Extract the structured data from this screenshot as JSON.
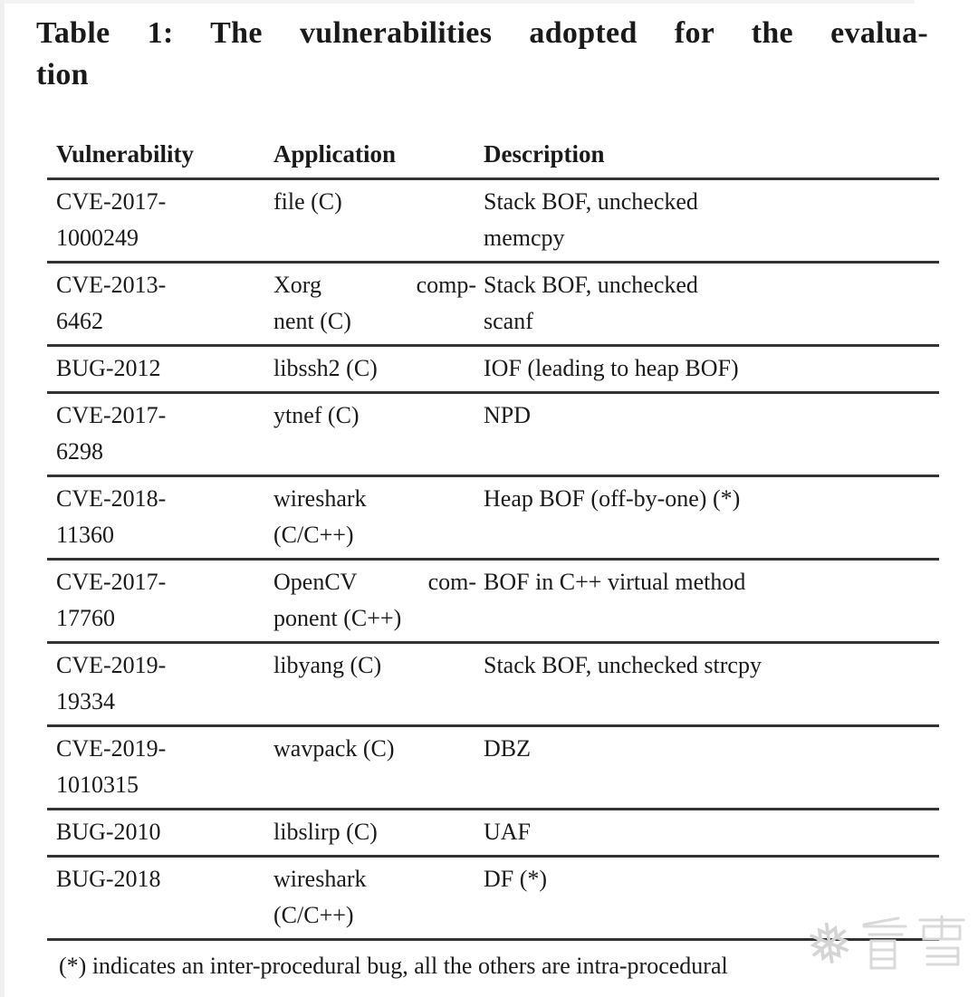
{
  "page": {
    "title": {
      "line1": "Table 1: The vulnerabilities adopted for the evalua-",
      "line2": "tion"
    }
  },
  "table": {
    "columns": [
      "Vulnerability",
      "Application",
      "Description"
    ],
    "rows": [
      {
        "vulnerability": "CVE-2017-\n1000249",
        "application": "file (C)",
        "description": "Stack BOF, unchecked\nmemcpy",
        "app_justify_first": false
      },
      {
        "vulnerability": "CVE-2013-\n6462",
        "application": "Xorg comp-\nnent (C)",
        "description": "Stack BOF, unchecked\nscanf",
        "app_justify_first": true
      },
      {
        "vulnerability": "BUG-2012",
        "application": "libssh2 (C)",
        "description": "IOF (leading to heap BOF)",
        "app_justify_first": false
      },
      {
        "vulnerability": "CVE-2017-\n6298",
        "application": "ytnef (C)",
        "description": "NPD",
        "app_justify_first": false
      },
      {
        "vulnerability": "CVE-2018-\n11360",
        "application": "wireshark\n(C/C++)",
        "description": "Heap BOF (off-by-one) (*)",
        "app_justify_first": false
      },
      {
        "vulnerability": "CVE-2017-\n17760",
        "application": "OpenCV com-\nponent (C++)",
        "description": "BOF in C++ virtual method",
        "app_justify_first": true
      },
      {
        "vulnerability": "CVE-2019-\n19334",
        "application": "libyang (C)",
        "description": "Stack BOF, unchecked strcpy",
        "app_justify_first": false
      },
      {
        "vulnerability": "CVE-2019-\n1010315",
        "application": "wavpack (C)",
        "description": "DBZ",
        "app_justify_first": false
      },
      {
        "vulnerability": "BUG-2010",
        "application": "libslirp (C)",
        "description": "UAF",
        "app_justify_first": false
      },
      {
        "vulnerability": "BUG-2018",
        "application": "wireshark\n(C/C++)",
        "description": "DF (*)",
        "app_justify_first": false
      }
    ],
    "footnote": "(*) indicates an inter-procedural bug, all the others are intra-procedural"
  },
  "watermark": {
    "snowflake_icon": "❅",
    "text": "看雪"
  },
  "colors": {
    "text": "#1a1a1a",
    "rule": "#333333",
    "watermark": "#d9d9d9"
  }
}
